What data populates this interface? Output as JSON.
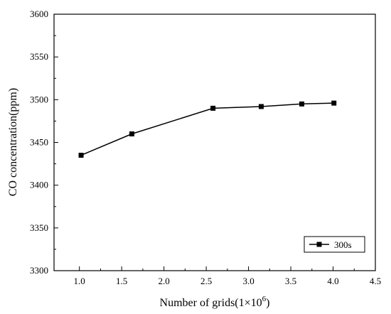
{
  "chart_data": {
    "type": "line",
    "title": "",
    "xlabel": "Number of grids(1×10",
    "xlabel_sup": "6",
    "xlabel_end": ")",
    "ylabel": "CO concentration(ppm)",
    "xlim": [
      0.7,
      4.5
    ],
    "ylim": [
      3300,
      3600
    ],
    "x_ticks": [
      1.0,
      1.5,
      2.0,
      2.5,
      3.0,
      3.5,
      4.0,
      4.5
    ],
    "x_tick_labels": [
      "1.0",
      "1.5",
      "2.0",
      "2.5",
      "3.0",
      "3.5",
      "4.0",
      "4.5"
    ],
    "y_ticks": [
      3300,
      3350,
      3400,
      3450,
      3500,
      3550,
      3600
    ],
    "y_tick_labels": [
      "3300",
      "3350",
      "3400",
      "3450",
      "3500",
      "3550",
      "3600"
    ],
    "grid": false,
    "legend_position": "bottom-right",
    "series": [
      {
        "name": "300s",
        "marker": "square",
        "color": "#000000",
        "x": [
          1.02,
          1.62,
          2.58,
          3.15,
          3.63,
          4.01
        ],
        "y": [
          3435,
          3460,
          3490,
          3492,
          3495,
          3496
        ]
      }
    ]
  }
}
